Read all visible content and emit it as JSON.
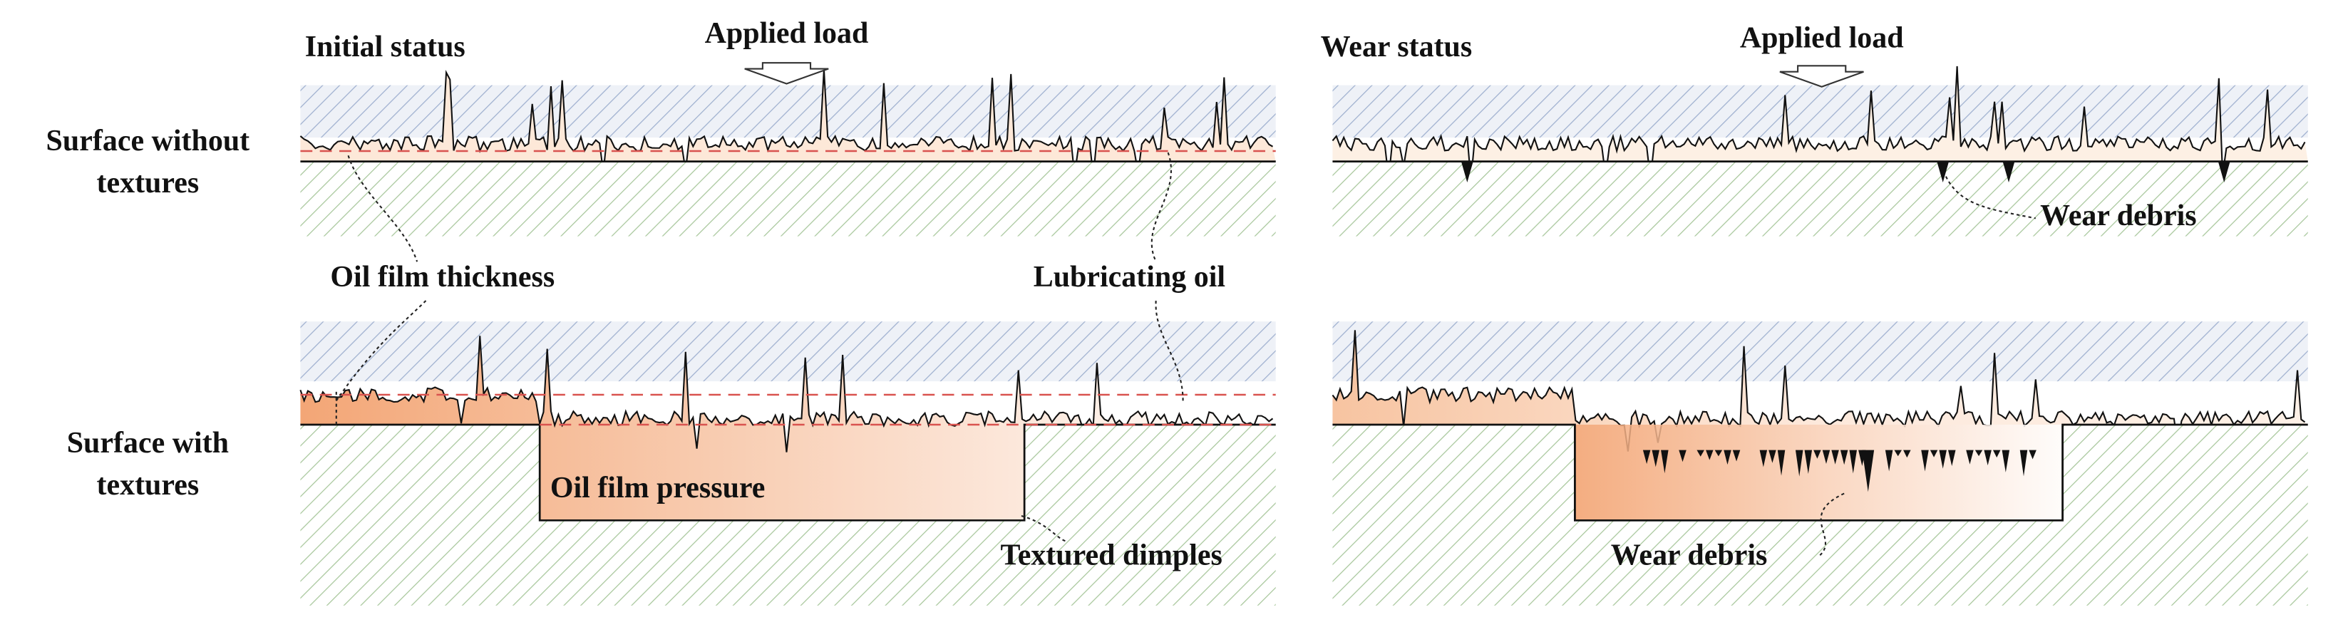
{
  "panels": [
    {
      "title": "Initial status",
      "load": "Applied load"
    },
    {
      "title": "Wear status",
      "load": "Applied load"
    }
  ],
  "rows": [
    {
      "lines": [
        "Surface without",
        "textures"
      ]
    },
    {
      "lines": [
        "Surface with",
        "textures"
      ]
    }
  ],
  "annotations": {
    "oil_film_thickness": "Oil film thickness",
    "lubricating_oil": "Lubricating oil",
    "wear_debris_top": "Wear debris",
    "oil_film_pressure": "Oil film pressure",
    "textured_dimples": "Textured dimples",
    "wear_debris_bottom": "Wear debris"
  }
}
